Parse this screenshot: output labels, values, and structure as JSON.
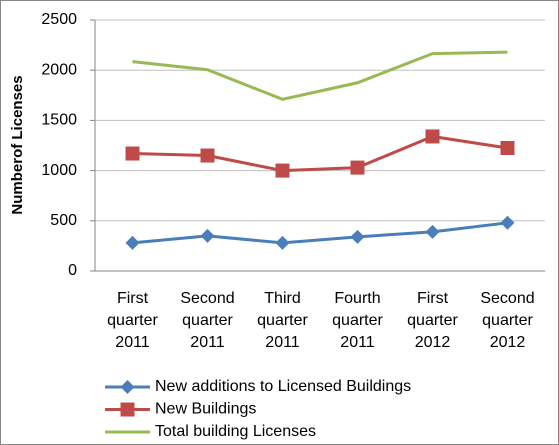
{
  "chart_data": {
    "type": "line",
    "y_label": "Numberof Licenses",
    "categories": [
      "First quarter 2011",
      "Second quarter 2011",
      "Third quarter 2011",
      "Fourth quarter 2011",
      "First quarter 2012",
      "Second quarter 2012"
    ],
    "series": [
      {
        "name": "New additions to Licensed Buildings",
        "color": "#4a7ebb",
        "marker": "diamond",
        "values": [
          280,
          350,
          280,
          340,
          390,
          480
        ]
      },
      {
        "name": "New Buildings",
        "color": "#be4b48",
        "marker": "square",
        "values": [
          1170,
          1150,
          1000,
          1030,
          1340,
          1225
        ]
      },
      {
        "name": "Total building Licenses",
        "color": "#98b954",
        "marker": "none",
        "values": [
          2085,
          2005,
          1710,
          1875,
          2165,
          2180
        ]
      }
    ],
    "ylim": [
      0,
      2500
    ],
    "yticks": [
      0,
      500,
      1000,
      1500,
      2000,
      2500
    ],
    "grid": true,
    "legend": "bottom"
  }
}
